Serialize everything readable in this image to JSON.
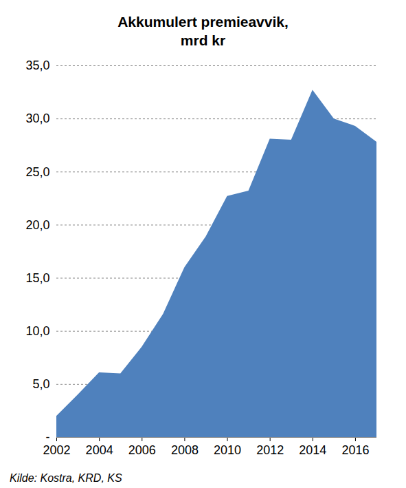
{
  "chart_data": {
    "type": "area",
    "title": "Akkumulert premieavvik,\nmrd kr",
    "caption": "Kilde: Kostra, KRD, KS",
    "x": [
      2002,
      2003,
      2004,
      2005,
      2006,
      2007,
      2008,
      2009,
      2010,
      2011,
      2012,
      2013,
      2014,
      2015,
      2016,
      2017
    ],
    "values": [
      2.0,
      4.0,
      6.1,
      6.0,
      8.5,
      11.6,
      16.0,
      18.9,
      22.7,
      23.2,
      28.1,
      28.0,
      32.7,
      30.0,
      29.3,
      27.8
    ],
    "color": "#4f81bd",
    "xlim": [
      2002,
      2017
    ],
    "xticks": [
      2002,
      2004,
      2006,
      2008,
      2010,
      2012,
      2014,
      2016
    ],
    "ylim": [
      0,
      35
    ],
    "yticks": [
      {
        "value": 0,
        "label": "-"
      },
      {
        "value": 5,
        "label": "5,0"
      },
      {
        "value": 10,
        "label": "10,0"
      },
      {
        "value": 15,
        "label": "15,0"
      },
      {
        "value": 20,
        "label": "20,0"
      },
      {
        "value": 25,
        "label": "25,0"
      },
      {
        "value": 30,
        "label": "30,0"
      },
      {
        "value": 35,
        "label": "35,0"
      }
    ],
    "grid": true
  }
}
